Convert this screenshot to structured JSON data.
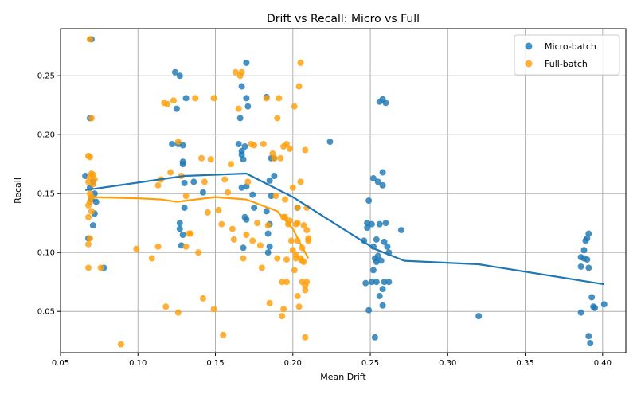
{
  "chart_data": {
    "type": "scatter",
    "title": "Drift vs Recall: Micro vs Full",
    "xlabel": "Mean Drift",
    "ylabel": "Recall",
    "xlim": [
      0.05,
      0.415
    ],
    "ylim": [
      0.015,
      0.29
    ],
    "xticks": [
      "0.05",
      "0.10",
      "0.15",
      "0.20",
      "0.25",
      "0.30",
      "0.35",
      "0.40"
    ],
    "xtick_values": [
      0.05,
      0.1,
      0.15,
      0.2,
      0.25,
      0.3,
      0.35,
      0.4
    ],
    "yticks": [
      "0.05",
      "0.10",
      "0.15",
      "0.20",
      "0.25"
    ],
    "ytick_values": [
      0.05,
      0.1,
      0.15,
      0.2,
      0.25
    ],
    "grid": true,
    "legend_position": "top-right",
    "series": [
      {
        "name": "Micro-batch",
        "color": "#1f77b4",
        "points": [
          [
            0.066,
            0.165
          ],
          [
            0.068,
            0.112
          ],
          [
            0.069,
            0.214
          ],
          [
            0.07,
            0.281
          ],
          [
            0.069,
            0.155
          ],
          [
            0.07,
            0.145
          ],
          [
            0.071,
            0.123
          ],
          [
            0.072,
            0.133
          ],
          [
            0.072,
            0.15
          ],
          [
            0.073,
            0.143
          ],
          [
            0.071,
            0.16
          ],
          [
            0.078,
            0.087
          ],
          [
            0.124,
            0.253
          ],
          [
            0.127,
            0.25
          ],
          [
            0.131,
            0.231
          ],
          [
            0.125,
            0.222
          ],
          [
            0.122,
            0.192
          ],
          [
            0.126,
            0.192
          ],
          [
            0.129,
            0.191
          ],
          [
            0.129,
            0.177
          ],
          [
            0.129,
            0.175
          ],
          [
            0.13,
            0.159
          ],
          [
            0.136,
            0.16
          ],
          [
            0.13,
            0.138
          ],
          [
            0.127,
            0.125
          ],
          [
            0.127,
            0.12
          ],
          [
            0.129,
            0.115
          ],
          [
            0.128,
            0.106
          ],
          [
            0.142,
            0.151
          ],
          [
            0.17,
            0.261
          ],
          [
            0.167,
            0.241
          ],
          [
            0.17,
            0.231
          ],
          [
            0.171,
            0.224
          ],
          [
            0.166,
            0.214
          ],
          [
            0.165,
            0.192
          ],
          [
            0.169,
            0.19
          ],
          [
            0.167,
            0.186
          ],
          [
            0.167,
            0.183
          ],
          [
            0.168,
            0.179
          ],
          [
            0.17,
            0.156
          ],
          [
            0.167,
            0.155
          ],
          [
            0.174,
            0.149
          ],
          [
            0.175,
            0.138
          ],
          [
            0.169,
            0.13
          ],
          [
            0.17,
            0.128
          ],
          [
            0.168,
            0.104
          ],
          [
            0.183,
            0.232
          ],
          [
            0.186,
            0.18
          ],
          [
            0.188,
            0.18
          ],
          [
            0.188,
            0.165
          ],
          [
            0.185,
            0.161
          ],
          [
            0.186,
            0.148
          ],
          [
            0.183,
            0.135
          ],
          [
            0.185,
            0.124
          ],
          [
            0.184,
            0.116
          ],
          [
            0.185,
            0.105
          ],
          [
            0.184,
            0.1
          ],
          [
            0.224,
            0.194
          ],
          [
            0.203,
            0.138
          ],
          [
            0.249,
            0.144
          ],
          [
            0.252,
            0.163
          ],
          [
            0.255,
            0.16
          ],
          [
            0.258,
            0.168
          ],
          [
            0.258,
            0.157
          ],
          [
            0.256,
            0.228
          ],
          [
            0.26,
            0.227
          ],
          [
            0.258,
            0.23
          ],
          [
            0.248,
            0.125
          ],
          [
            0.251,
            0.124
          ],
          [
            0.256,
            0.124
          ],
          [
            0.26,
            0.125
          ],
          [
            0.248,
            0.121
          ],
          [
            0.246,
            0.11
          ],
          [
            0.252,
            0.105
          ],
          [
            0.254,
            0.111
          ],
          [
            0.259,
            0.109
          ],
          [
            0.261,
            0.105
          ],
          [
            0.262,
            0.1
          ],
          [
            0.253,
            0.095
          ],
          [
            0.255,
            0.097
          ],
          [
            0.254,
            0.092
          ],
          [
            0.257,
            0.093
          ],
          [
            0.252,
            0.085
          ],
          [
            0.251,
            0.075
          ],
          [
            0.254,
            0.075
          ],
          [
            0.247,
            0.074
          ],
          [
            0.259,
            0.075
          ],
          [
            0.262,
            0.075
          ],
          [
            0.258,
            0.069
          ],
          [
            0.256,
            0.063
          ],
          [
            0.258,
            0.055
          ],
          [
            0.249,
            0.051
          ],
          [
            0.253,
            0.028
          ],
          [
            0.27,
            0.119
          ],
          [
            0.32,
            0.046
          ],
          [
            0.391,
            0.116
          ],
          [
            0.39,
            0.112
          ],
          [
            0.389,
            0.11
          ],
          [
            0.388,
            0.102
          ],
          [
            0.386,
            0.096
          ],
          [
            0.388,
            0.095
          ],
          [
            0.39,
            0.094
          ],
          [
            0.386,
            0.088
          ],
          [
            0.391,
            0.087
          ],
          [
            0.393,
            0.062
          ],
          [
            0.394,
            0.054
          ],
          [
            0.395,
            0.053
          ],
          [
            0.401,
            0.056
          ],
          [
            0.386,
            0.049
          ],
          [
            0.391,
            0.029
          ],
          [
            0.392,
            0.023
          ]
        ],
        "trend": [
          [
            0.066,
            0.153
          ],
          [
            0.13,
            0.165
          ],
          [
            0.17,
            0.167
          ],
          [
            0.2,
            0.147
          ],
          [
            0.23,
            0.122
          ],
          [
            0.253,
            0.103
          ],
          [
            0.272,
            0.093
          ],
          [
            0.32,
            0.09
          ],
          [
            0.401,
            0.073
          ]
        ]
      },
      {
        "name": "Full-batch",
        "color": "#ff9f0a",
        "points": [
          [
            0.069,
            0.281
          ],
          [
            0.07,
            0.214
          ],
          [
            0.068,
            0.182
          ],
          [
            0.069,
            0.181
          ],
          [
            0.07,
            0.167
          ],
          [
            0.071,
            0.166
          ],
          [
            0.069,
            0.164
          ],
          [
            0.072,
            0.162
          ],
          [
            0.068,
            0.16
          ],
          [
            0.071,
            0.158
          ],
          [
            0.069,
            0.15
          ],
          [
            0.07,
            0.147
          ],
          [
            0.069,
            0.143
          ],
          [
            0.068,
            0.14
          ],
          [
            0.07,
            0.135
          ],
          [
            0.068,
            0.13
          ],
          [
            0.069,
            0.112
          ],
          [
            0.068,
            0.107
          ],
          [
            0.068,
            0.087
          ],
          [
            0.076,
            0.087
          ],
          [
            0.089,
            0.022
          ],
          [
            0.099,
            0.103
          ],
          [
            0.109,
            0.095
          ],
          [
            0.113,
            0.105
          ],
          [
            0.113,
            0.157
          ],
          [
            0.115,
            0.162
          ],
          [
            0.117,
            0.227
          ],
          [
            0.119,
            0.226
          ],
          [
            0.121,
            0.168
          ],
          [
            0.123,
            0.229
          ],
          [
            0.126,
            0.194
          ],
          [
            0.128,
            0.165
          ],
          [
            0.131,
            0.148
          ],
          [
            0.133,
            0.116
          ],
          [
            0.134,
            0.116
          ],
          [
            0.131,
            0.105
          ],
          [
            0.137,
            0.231
          ],
          [
            0.139,
            0.1
          ],
          [
            0.141,
            0.18
          ],
          [
            0.142,
            0.061
          ],
          [
            0.143,
            0.16
          ],
          [
            0.145,
            0.134
          ],
          [
            0.147,
            0.179
          ],
          [
            0.149,
            0.231
          ],
          [
            0.152,
            0.136
          ],
          [
            0.154,
            0.124
          ],
          [
            0.155,
            0.03
          ],
          [
            0.158,
            0.151
          ],
          [
            0.16,
            0.175
          ],
          [
            0.161,
            0.12
          ],
          [
            0.162,
            0.111
          ],
          [
            0.163,
            0.253
          ],
          [
            0.165,
            0.222
          ],
          [
            0.166,
            0.25
          ],
          [
            0.118,
            0.054
          ],
          [
            0.126,
            0.049
          ],
          [
            0.149,
            0.052
          ],
          [
            0.156,
            0.162
          ],
          [
            0.17,
            0.115
          ],
          [
            0.171,
            0.16
          ],
          [
            0.173,
            0.192
          ],
          [
            0.174,
            0.11
          ],
          [
            0.175,
            0.191
          ],
          [
            0.177,
            0.125
          ],
          [
            0.179,
            0.106
          ],
          [
            0.18,
            0.087
          ],
          [
            0.181,
            0.192
          ],
          [
            0.183,
            0.231
          ],
          [
            0.184,
            0.123
          ],
          [
            0.185,
            0.057
          ],
          [
            0.187,
            0.184
          ],
          [
            0.188,
            0.18
          ],
          [
            0.189,
            0.148
          ],
          [
            0.19,
            0.095
          ],
          [
            0.19,
            0.214
          ],
          [
            0.191,
            0.231
          ],
          [
            0.192,
            0.18
          ],
          [
            0.193,
            0.075
          ],
          [
            0.193,
            0.046
          ],
          [
            0.194,
            0.052
          ],
          [
            0.194,
            0.13
          ],
          [
            0.194,
            0.19
          ],
          [
            0.195,
            0.145
          ],
          [
            0.195,
            0.13
          ],
          [
            0.196,
            0.192
          ],
          [
            0.196,
            0.094
          ],
          [
            0.196,
            0.075
          ],
          [
            0.197,
            0.124
          ],
          [
            0.198,
            0.127
          ],
          [
            0.198,
            0.188
          ],
          [
            0.199,
            0.11
          ],
          [
            0.2,
            0.155
          ],
          [
            0.2,
            0.102
          ],
          [
            0.201,
            0.085
          ],
          [
            0.201,
            0.224
          ],
          [
            0.202,
            0.124
          ],
          [
            0.202,
            0.098
          ],
          [
            0.202,
            0.095
          ],
          [
            0.203,
            0.125
          ],
          [
            0.203,
            0.11
          ],
          [
            0.203,
            0.138
          ],
          [
            0.203,
            0.063
          ],
          [
            0.204,
            0.241
          ],
          [
            0.204,
            0.054
          ],
          [
            0.205,
            0.261
          ],
          [
            0.205,
            0.16
          ],
          [
            0.205,
            0.095
          ],
          [
            0.206,
            0.104
          ],
          [
            0.206,
            0.093
          ],
          [
            0.206,
            0.075
          ],
          [
            0.207,
            0.123
          ],
          [
            0.207,
            0.092
          ],
          [
            0.208,
            0.187
          ],
          [
            0.208,
            0.072
          ],
          [
            0.208,
            0.028
          ],
          [
            0.208,
            0.068
          ],
          [
            0.209,
            0.138
          ],
          [
            0.209,
            0.119
          ],
          [
            0.209,
            0.075
          ],
          [
            0.21,
            0.112
          ],
          [
            0.21,
            0.11
          ],
          [
            0.168,
            0.095
          ],
          [
            0.167,
            0.253
          ]
        ],
        "trend": [
          [
            0.068,
            0.147
          ],
          [
            0.1,
            0.146
          ],
          [
            0.115,
            0.145
          ],
          [
            0.125,
            0.143
          ],
          [
            0.15,
            0.147
          ],
          [
            0.17,
            0.145
          ],
          [
            0.19,
            0.135
          ],
          [
            0.2,
            0.12
          ],
          [
            0.205,
            0.107
          ],
          [
            0.21,
            0.095
          ]
        ]
      }
    ]
  }
}
